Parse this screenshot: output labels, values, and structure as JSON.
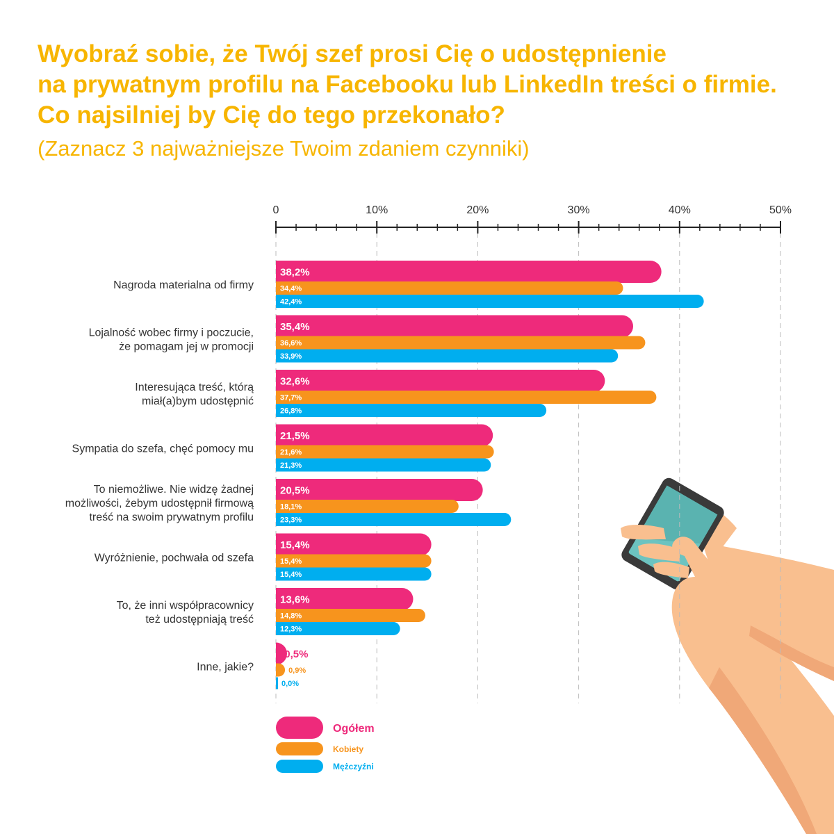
{
  "title_lines": [
    "Wyobraź sobie, że Twój szef prosi Cię o udostępnienie",
    "na prywatnym profilu na Facebooku lub LinkedIn treści o firmie.",
    "Co najsilniej by Cię do tego przekonało?"
  ],
  "subtitle": "(Zaznacz 3 najważniejsze Twoim zdaniem czynniki)",
  "chart_data": {
    "type": "bar",
    "orientation": "horizontal",
    "x_ticks": [
      "0",
      "10%",
      "20%",
      "30%",
      "40%",
      "50%"
    ],
    "xlim": [
      0,
      50
    ],
    "grid": true,
    "legend_position": "bottom-left",
    "categories": [
      [
        "Nagroda materialna od firmy"
      ],
      [
        "Lojalność wobec firmy i poczucie,",
        "że pomagam jej w promocji"
      ],
      [
        "Interesująca treść, którą",
        "miał(a)bym udostępnić"
      ],
      [
        "Sympatia do szefa, chęć pomocy mu"
      ],
      [
        "To niemożliwe. Nie widzę żadnej",
        "możliwości, żebym udostępnił firmową",
        "treść na swoim prywatnym profilu"
      ],
      [
        "Wyróżnienie, pochwała od szefa"
      ],
      [
        "To, że inni współpracownicy",
        "też udostępniają treść"
      ],
      [
        "Inne, jakie?"
      ]
    ],
    "series": [
      {
        "name": "Ogółem",
        "color": "#ee2a7b",
        "values": [
          38.2,
          35.4,
          32.6,
          21.5,
          20.5,
          15.4,
          13.6,
          0.5
        ],
        "labels": [
          "38,2%",
          "35,4%",
          "32,6%",
          "21,5%",
          "20,5%",
          "15,4%",
          "13,6%",
          "0,5%"
        ]
      },
      {
        "name": "Kobiety",
        "color": "#f7941d",
        "values": [
          34.4,
          36.6,
          37.7,
          21.6,
          18.1,
          15.4,
          14.8,
          0.9
        ],
        "labels": [
          "34,4%",
          "36,6%",
          "37,7%",
          "21,6%",
          "18,1%",
          "15,4%",
          "14,8%",
          "0,9%"
        ]
      },
      {
        "name": "Mężczyźni",
        "color": "#00aeef",
        "values": [
          42.4,
          33.9,
          26.8,
          21.3,
          23.3,
          15.4,
          12.3,
          0.0
        ],
        "labels": [
          "42,4%",
          "33,9%",
          "26,8%",
          "21,3%",
          "23,3%",
          "15,4%",
          "12,3%",
          "0,0%"
        ]
      }
    ]
  },
  "colors": {
    "title": "#f7b500",
    "axis": "#222222",
    "grid": "#bbbbbb",
    "skin": "#f9bf8f",
    "skin_shade": "#f0a878",
    "phone_body": "#3a3a3a",
    "phone_screen": "#6cc3c0"
  },
  "icons": [
    "hand-with-smartphone-illustration"
  ]
}
